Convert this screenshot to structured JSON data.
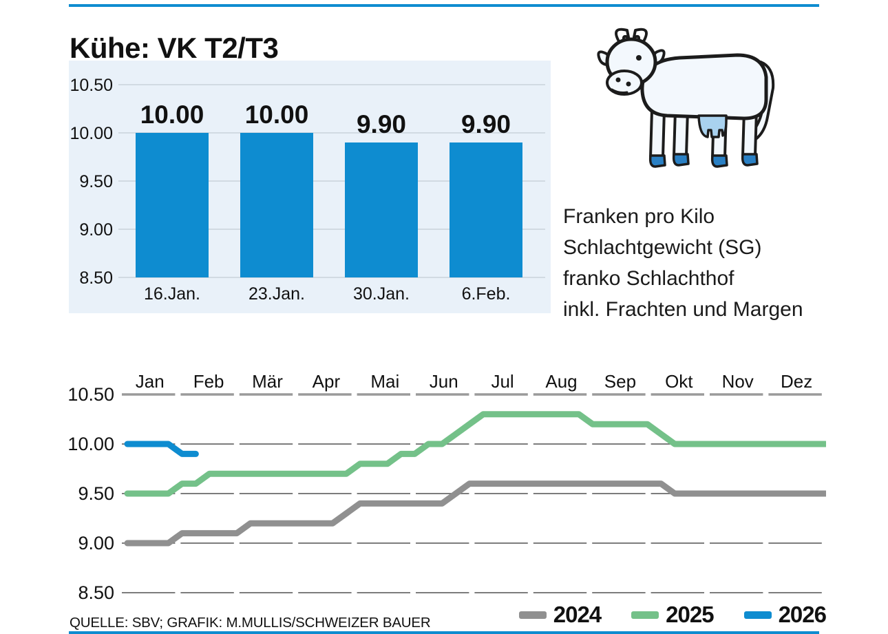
{
  "page": {
    "title": "Kühe: VK T2/T3",
    "note_lines": [
      "Franken pro Kilo",
      "Schlachtgewicht (SG)",
      "franko Schlachthof",
      "inkl. Frachten und Margen"
    ],
    "source": "QUELLE: SBV; GRAFIK: M.MULLIS/SCHWEIZER BAUER",
    "accent_color": "#0e8cd0"
  },
  "colors": {
    "accent_blue": "#0e8cd0",
    "panel_background": "#e9f1f9",
    "panel_gridline": "#c9d2da",
    "chart_gridline": "#6a6a6a",
    "month_axis_line": "#9a9a9a",
    "series_2024": "#909090",
    "series_2025": "#74c189",
    "series_2026": "#0e8cd0",
    "text": "#111111"
  },
  "chart_data": [
    {
      "id": "weekly-price-bars",
      "type": "bar",
      "title": "",
      "categories": [
        "16.Jan.",
        "23.Jan.",
        "30.Jan.",
        "6.Feb."
      ],
      "values": [
        10.0,
        10.0,
        9.9,
        9.9
      ],
      "data_labels": [
        "10.00",
        "10.00",
        "9.90",
        "9.90"
      ],
      "ylim": [
        8.5,
        10.5
      ],
      "ytick_labels": [
        "10.50",
        "10.00",
        "9.50",
        "9.00",
        "8.50"
      ],
      "grid": true,
      "bar_color": "#0e8cd0",
      "panel_bg": "#e9f1f9"
    },
    {
      "id": "yearly-price-lines",
      "type": "line",
      "x_axis": {
        "months": [
          "Jan",
          "Feb",
          "Mär",
          "Apr",
          "Mai",
          "Jun",
          "Jul",
          "Aug",
          "Sep",
          "Okt",
          "Nov",
          "Dez"
        ],
        "position": "top",
        "style": "dashed-per-month"
      },
      "ylim": [
        8.5,
        10.5
      ],
      "ytick_labels": [
        "10.50",
        "10.00",
        "9.50",
        "9.00",
        "8.50"
      ],
      "grid": "dashed-per-month",
      "legend_position": "bottom-right",
      "series": [
        {
          "name": "2024",
          "color": "#909090",
          "weekly_values": [
            9.0,
            9.0,
            9.0,
            9.0,
            9.1,
            9.1,
            9.1,
            9.1,
            9.1,
            9.2,
            9.2,
            9.2,
            9.2,
            9.2,
            9.2,
            9.2,
            9.3,
            9.4,
            9.4,
            9.4,
            9.4,
            9.4,
            9.4,
            9.4,
            9.5,
            9.6,
            9.6,
            9.6,
            9.6,
            9.6,
            9.6,
            9.6,
            9.6,
            9.6,
            9.6,
            9.6,
            9.6,
            9.6,
            9.6,
            9.6,
            9.5,
            9.5,
            9.5,
            9.5,
            9.5,
            9.5,
            9.5,
            9.5,
            9.5,
            9.5,
            9.5,
            9.5
          ]
        },
        {
          "name": "2025",
          "color": "#74c189",
          "weekly_values": [
            9.5,
            9.5,
            9.5,
            9.5,
            9.6,
            9.6,
            9.7,
            9.7,
            9.7,
            9.7,
            9.7,
            9.7,
            9.7,
            9.7,
            9.7,
            9.7,
            9.7,
            9.8,
            9.8,
            9.8,
            9.9,
            9.9,
            10.0,
            10.0,
            10.1,
            10.2,
            10.3,
            10.3,
            10.3,
            10.3,
            10.3,
            10.3,
            10.3,
            10.3,
            10.2,
            10.2,
            10.2,
            10.2,
            10.2,
            10.1,
            10.0,
            10.0,
            10.0,
            10.0,
            10.0,
            10.0,
            10.0,
            10.0,
            10.0,
            10.0,
            10.0,
            10.0
          ]
        },
        {
          "name": "2026",
          "color": "#0e8cd0",
          "weekly_values": [
            10.0,
            10.0,
            10.0,
            10.0,
            9.9,
            9.9
          ]
        }
      ]
    }
  ]
}
